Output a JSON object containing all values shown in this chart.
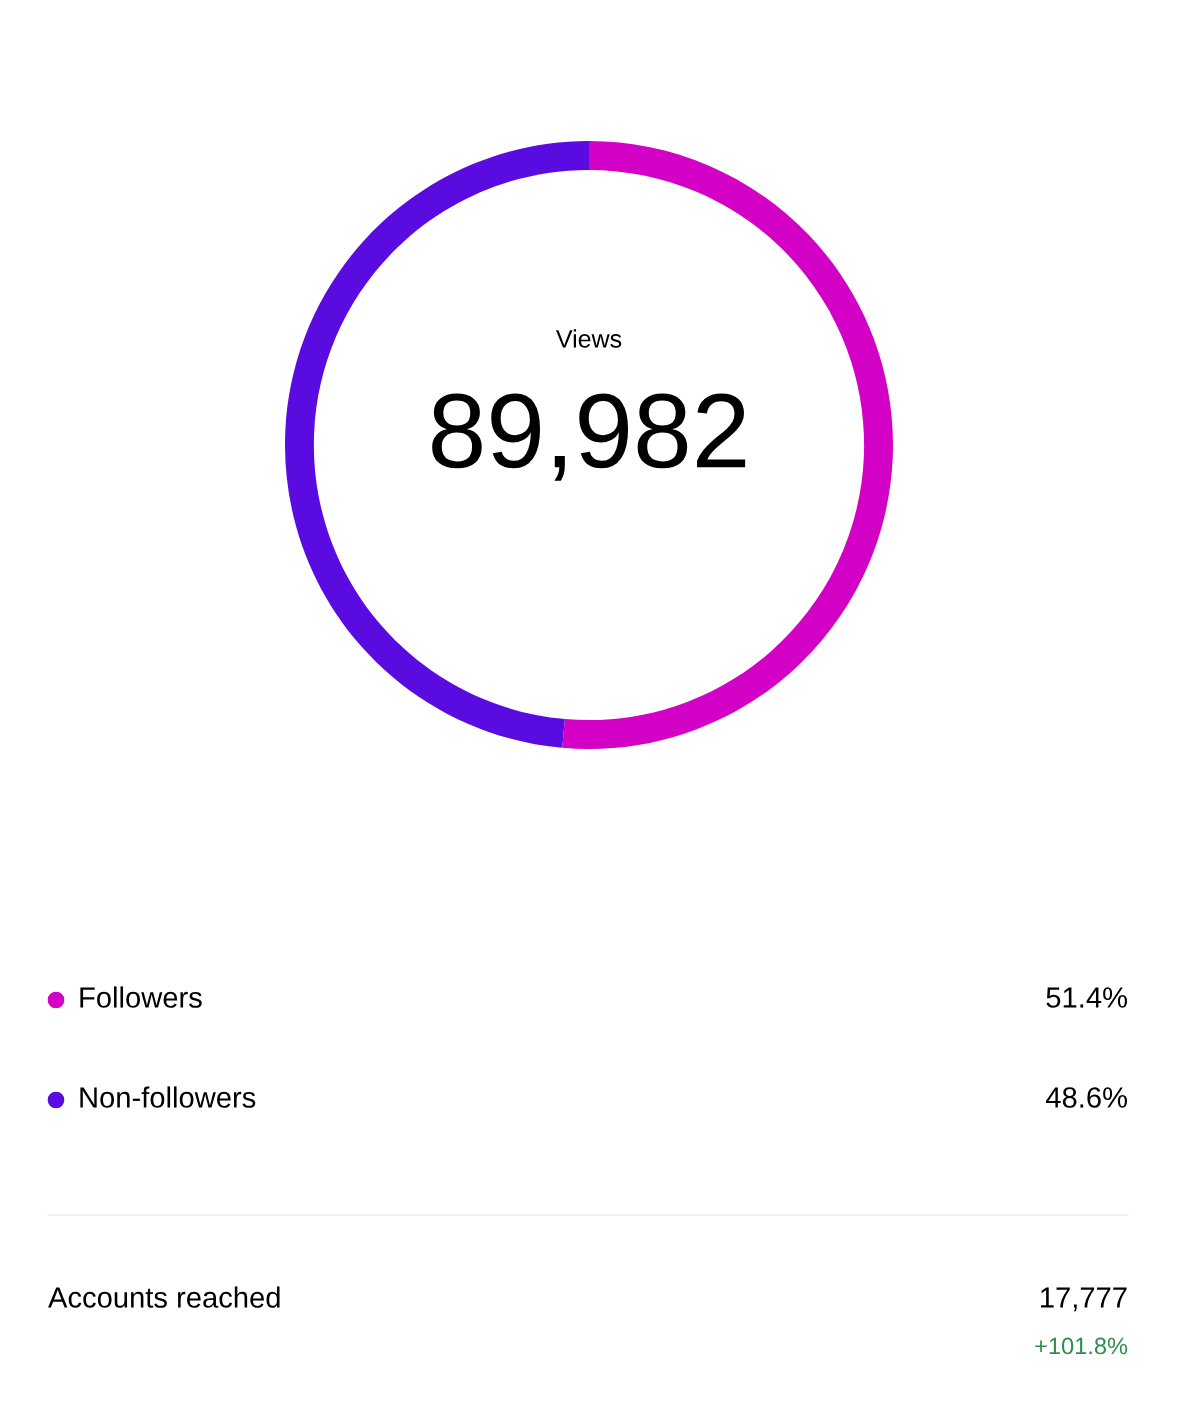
{
  "chart_data": {
    "type": "donut",
    "title": "Views",
    "categories": [
      "Followers",
      "Non-followers"
    ],
    "values": [
      51.4,
      48.6
    ],
    "colors": [
      "#d300c5",
      "#5a0be0"
    ],
    "value_labels": [
      "51.4%",
      "48.6%"
    ],
    "legend": "bottom",
    "annotations": [
      "89,982",
      "Accounts reached",
      "17,777",
      "+101.8%"
    ]
  }
}
